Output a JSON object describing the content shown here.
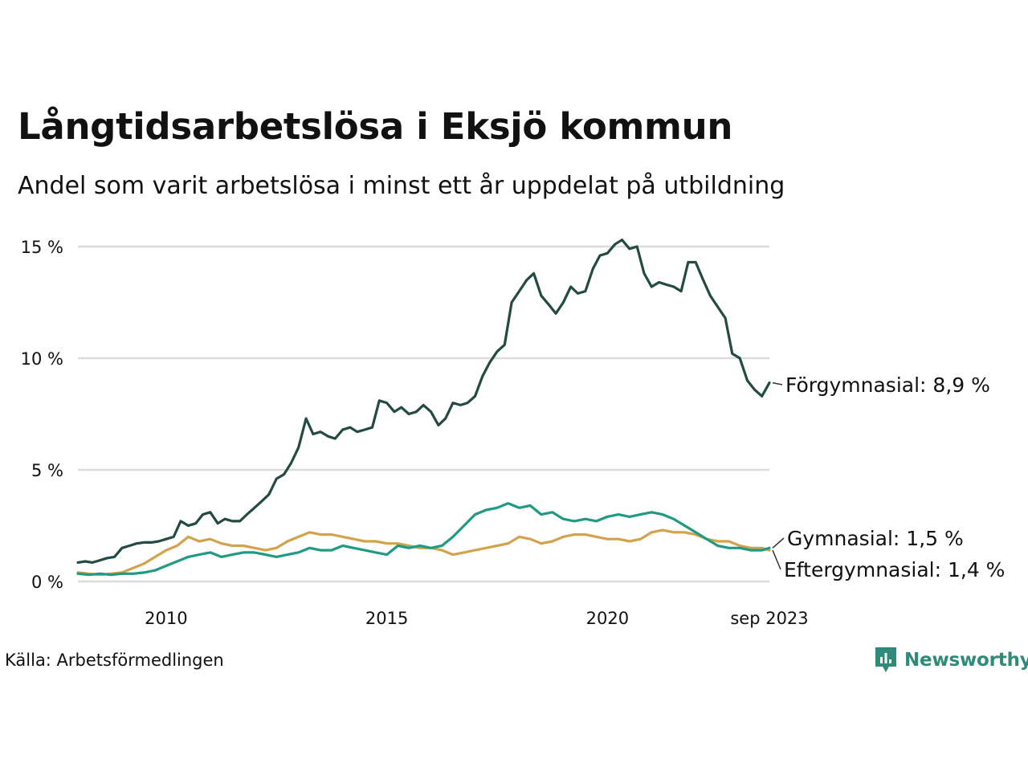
{
  "chart_data": {
    "type": "line",
    "title": "Långtidsarbetslösa i Eksjö kommun",
    "subtitle": "Andel som varit arbetslösa i minst ett år uppdelat på utbildning",
    "source": "Källa: Arbetsförmedlingen",
    "brand": "Newsworthy",
    "xlabel": "",
    "ylabel": "",
    "xlim": [
      2008.0,
      2023.67
    ],
    "ylim": [
      0,
      15
    ],
    "y_ticks": [
      {
        "value": 0,
        "label": "0 %"
      },
      {
        "value": 5,
        "label": "5 %"
      },
      {
        "value": 10,
        "label": "10 %"
      },
      {
        "value": 15,
        "label": "15 %"
      }
    ],
    "x_ticks": [
      {
        "value": 2010,
        "label": "2010"
      },
      {
        "value": 2015,
        "label": "2015"
      },
      {
        "value": 2020,
        "label": "2020"
      },
      {
        "value": 2023.67,
        "label": "sep 2023"
      }
    ],
    "grid": true,
    "series": [
      {
        "name": "Förgymnasial",
        "end_label": "Förgymnasial: 8,9 %",
        "color": "#234a43",
        "x": [
          2008.0,
          2008.17,
          2008.33,
          2008.5,
          2008.67,
          2008.83,
          2009.0,
          2009.17,
          2009.33,
          2009.5,
          2009.67,
          2009.83,
          2010.0,
          2010.17,
          2010.33,
          2010.5,
          2010.67,
          2010.83,
          2011.0,
          2011.17,
          2011.33,
          2011.5,
          2011.67,
          2011.83,
          2012.0,
          2012.17,
          2012.33,
          2012.5,
          2012.67,
          2012.83,
          2013.0,
          2013.17,
          2013.33,
          2013.5,
          2013.67,
          2013.83,
          2014.0,
          2014.17,
          2014.33,
          2014.5,
          2014.67,
          2014.83,
          2015.0,
          2015.17,
          2015.33,
          2015.5,
          2015.67,
          2015.83,
          2016.0,
          2016.17,
          2016.33,
          2016.5,
          2016.67,
          2016.83,
          2017.0,
          2017.17,
          2017.33,
          2017.5,
          2017.67,
          2017.83,
          2018.0,
          2018.17,
          2018.33,
          2018.5,
          2018.67,
          2018.83,
          2019.0,
          2019.17,
          2019.33,
          2019.5,
          2019.67,
          2019.83,
          2020.0,
          2020.17,
          2020.33,
          2020.5,
          2020.67,
          2020.83,
          2021.0,
          2021.17,
          2021.33,
          2021.5,
          2021.67,
          2021.83,
          2022.0,
          2022.17,
          2022.33,
          2022.5,
          2022.67,
          2022.83,
          2023.0,
          2023.17,
          2023.33,
          2023.5,
          2023.67
        ],
        "values": [
          0.85,
          0.9,
          0.85,
          0.95,
          1.05,
          1.1,
          1.5,
          1.6,
          1.7,
          1.75,
          1.75,
          1.8,
          1.9,
          2.0,
          2.7,
          2.5,
          2.6,
          3.0,
          3.1,
          2.6,
          2.8,
          2.7,
          2.7,
          3.0,
          3.3,
          3.6,
          3.9,
          4.6,
          4.8,
          5.3,
          6.0,
          7.3,
          6.6,
          6.7,
          6.5,
          6.4,
          6.8,
          6.9,
          6.7,
          6.8,
          6.9,
          8.1,
          8.0,
          7.6,
          7.8,
          7.5,
          7.6,
          7.9,
          7.6,
          7.0,
          7.3,
          8.0,
          7.9,
          8.0,
          8.3,
          9.2,
          9.8,
          10.3,
          10.6,
          12.5,
          13.0,
          13.5,
          13.8,
          12.8,
          12.4,
          12.0,
          12.5,
          13.2,
          12.9,
          13.0,
          14.0,
          14.6,
          14.7,
          15.1,
          15.3,
          14.9,
          15.0,
          13.8,
          13.2,
          13.4,
          13.3,
          13.2,
          13.0,
          14.3,
          14.3,
          13.5,
          12.8,
          12.3,
          11.8,
          10.2,
          10.0,
          9.0,
          8.6,
          8.3,
          8.9
        ]
      },
      {
        "name": "Gymnasial",
        "end_label": "Gymnasial: 1,5 %",
        "color": "#1f9a83",
        "x": [
          2008.0,
          2008.25,
          2008.5,
          2008.75,
          2009.0,
          2009.25,
          2009.5,
          2009.75,
          2010.0,
          2010.25,
          2010.5,
          2010.75,
          2011.0,
          2011.25,
          2011.5,
          2011.75,
          2012.0,
          2012.25,
          2012.5,
          2012.75,
          2013.0,
          2013.25,
          2013.5,
          2013.75,
          2014.0,
          2014.25,
          2014.5,
          2014.75,
          2015.0,
          2015.25,
          2015.5,
          2015.75,
          2016.0,
          2016.25,
          2016.5,
          2016.75,
          2017.0,
          2017.25,
          2017.5,
          2017.75,
          2018.0,
          2018.25,
          2018.5,
          2018.75,
          2019.0,
          2019.25,
          2019.5,
          2019.75,
          2020.0,
          2020.25,
          2020.5,
          2020.75,
          2021.0,
          2021.25,
          2021.5,
          2021.75,
          2022.0,
          2022.25,
          2022.5,
          2022.75,
          2023.0,
          2023.25,
          2023.5,
          2023.67
        ],
        "values": [
          0.35,
          0.3,
          0.35,
          0.3,
          0.35,
          0.35,
          0.4,
          0.5,
          0.7,
          0.9,
          1.1,
          1.2,
          1.3,
          1.1,
          1.2,
          1.3,
          1.3,
          1.2,
          1.1,
          1.2,
          1.3,
          1.5,
          1.4,
          1.4,
          1.6,
          1.5,
          1.4,
          1.3,
          1.2,
          1.6,
          1.5,
          1.6,
          1.5,
          1.6,
          2.0,
          2.5,
          3.0,
          3.2,
          3.3,
          3.5,
          3.3,
          3.4,
          3.0,
          3.1,
          2.8,
          2.7,
          2.8,
          2.7,
          2.9,
          3.0,
          2.9,
          3.0,
          3.1,
          3.0,
          2.8,
          2.5,
          2.2,
          1.9,
          1.6,
          1.5,
          1.5,
          1.4,
          1.4,
          1.5
        ]
      },
      {
        "name": "Eftergymnasial",
        "end_label": "Eftergymnasial: 1,4 %",
        "color": "#d2a24c",
        "x": [
          2008.0,
          2008.25,
          2008.5,
          2008.75,
          2009.0,
          2009.25,
          2009.5,
          2009.75,
          2010.0,
          2010.25,
          2010.5,
          2010.75,
          2011.0,
          2011.25,
          2011.5,
          2011.75,
          2012.0,
          2012.25,
          2012.5,
          2012.75,
          2013.0,
          2013.25,
          2013.5,
          2013.75,
          2014.0,
          2014.25,
          2014.5,
          2014.75,
          2015.0,
          2015.25,
          2015.5,
          2015.75,
          2016.0,
          2016.25,
          2016.5,
          2016.75,
          2017.0,
          2017.25,
          2017.5,
          2017.75,
          2018.0,
          2018.25,
          2018.5,
          2018.75,
          2019.0,
          2019.25,
          2019.5,
          2019.75,
          2020.0,
          2020.25,
          2020.5,
          2020.75,
          2021.0,
          2021.25,
          2021.5,
          2021.75,
          2022.0,
          2022.25,
          2022.5,
          2022.75,
          2023.0,
          2023.25,
          2023.5,
          2023.67
        ],
        "values": [
          0.4,
          0.35,
          0.3,
          0.35,
          0.4,
          0.6,
          0.8,
          1.1,
          1.4,
          1.6,
          2.0,
          1.8,
          1.9,
          1.7,
          1.6,
          1.6,
          1.5,
          1.4,
          1.5,
          1.8,
          2.0,
          2.2,
          2.1,
          2.1,
          2.0,
          1.9,
          1.8,
          1.8,
          1.7,
          1.7,
          1.6,
          1.5,
          1.5,
          1.4,
          1.2,
          1.3,
          1.4,
          1.5,
          1.6,
          1.7,
          2.0,
          1.9,
          1.7,
          1.8,
          2.0,
          2.1,
          2.1,
          2.0,
          1.9,
          1.9,
          1.8,
          1.9,
          2.2,
          2.3,
          2.2,
          2.2,
          2.1,
          1.9,
          1.8,
          1.8,
          1.6,
          1.5,
          1.5,
          1.4
        ]
      }
    ]
  }
}
